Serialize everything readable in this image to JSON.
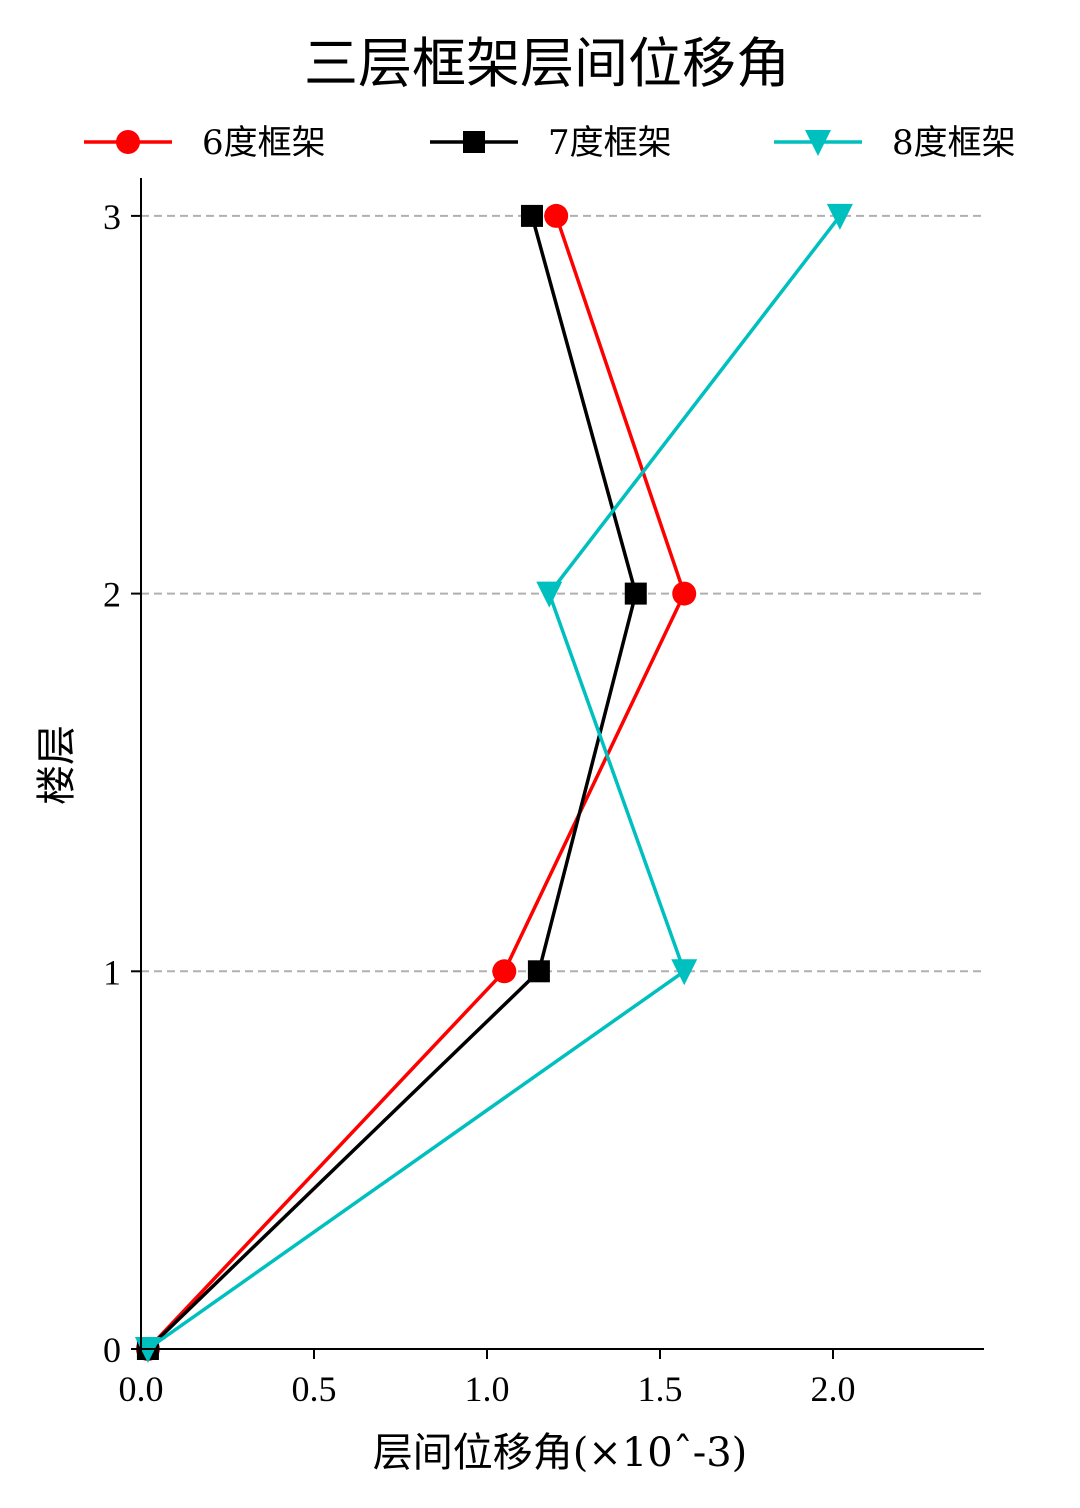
{
  "chart_data": {
    "type": "line",
    "title": "三层框架层间位移角",
    "xlabel": "层间位移角(×10ˆ-3)",
    "ylabel": "楼层",
    "xlim": [
      0,
      2.45
    ],
    "ylim": [
      0,
      3.1
    ],
    "x_ticks": [
      0.0,
      0.5,
      1.0,
      1.5,
      2.0
    ],
    "x_tick_labels": [
      "0.0",
      "0.5",
      "1.0",
      "1.5",
      "2.0"
    ],
    "y_ticks": [
      0,
      1,
      2,
      3
    ],
    "y_tick_labels": [
      "0",
      "1",
      "2",
      "3"
    ],
    "grid": "horizontal dashed at y ticks",
    "legend_position": "top",
    "series": [
      {
        "name": "6度框架",
        "color": "#ff0000",
        "marker": "circle",
        "x": [
          0.02,
          1.05,
          1.57,
          1.2
        ],
        "y": [
          0,
          1,
          2,
          3
        ]
      },
      {
        "name": "7度框架",
        "color": "#000000",
        "marker": "square",
        "x": [
          0.02,
          1.15,
          1.43,
          1.13
        ],
        "y": [
          0,
          1,
          2,
          3
        ]
      },
      {
        "name": "8度框架",
        "color": "#00bfbf",
        "marker": "triangle-down",
        "x": [
          0.02,
          1.57,
          1.18,
          2.02
        ],
        "y": [
          0,
          1,
          2,
          3
        ]
      }
    ]
  }
}
